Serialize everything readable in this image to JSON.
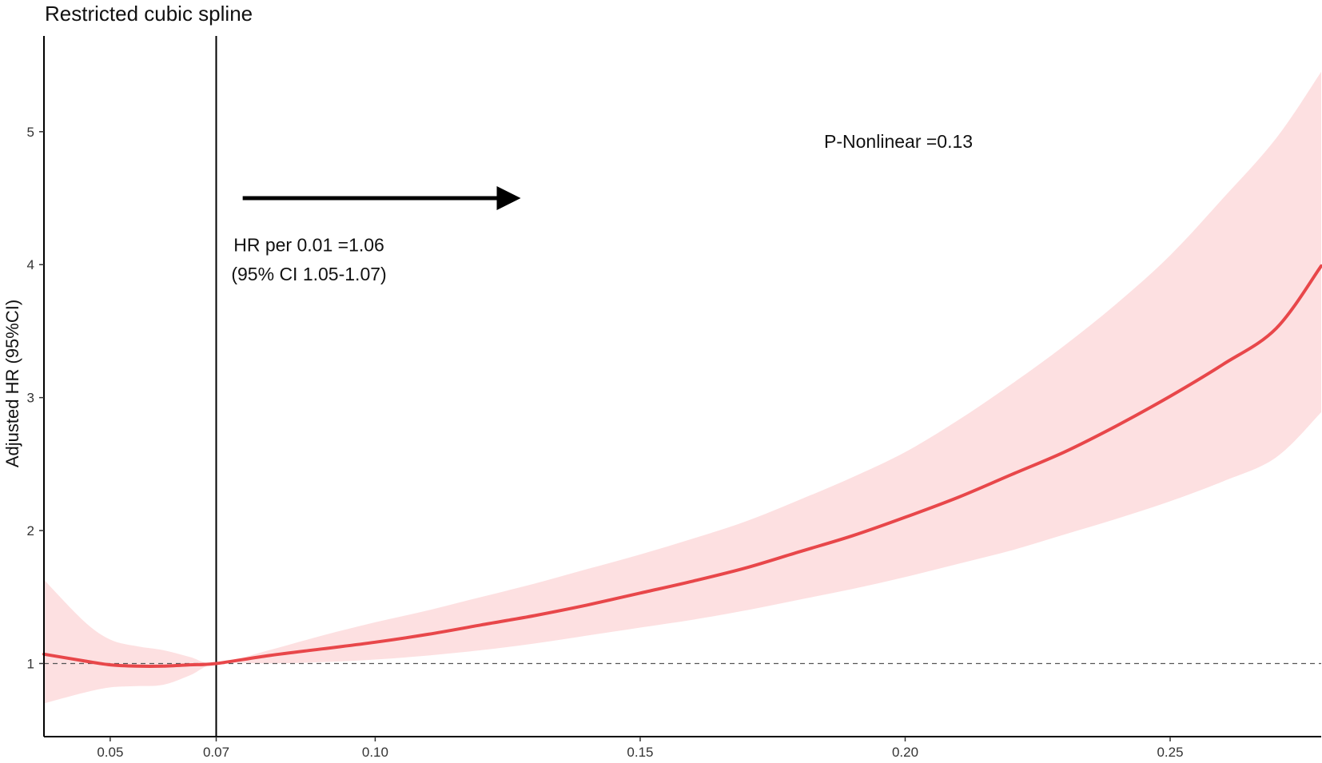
{
  "chart_data": {
    "type": "line",
    "title": "Restricted cubic spline",
    "xlabel": "",
    "ylabel": "Adjusted HR (95%CI)",
    "xlim": [
      0.0375,
      0.2785
    ],
    "ylim": [
      0.45,
      5.72
    ],
    "x_ticks": [
      "0.05",
      "0.07",
      "0.10",
      "0.15",
      "0.20",
      "0.25"
    ],
    "y_ticks": [
      "1",
      "2",
      "3",
      "4",
      "5"
    ],
    "reference_line": {
      "y": 1,
      "style": "dashed"
    },
    "vertical_line": {
      "x": 0.07
    },
    "grid": false,
    "series": [
      {
        "color": "#e8474a",
        "band_color": "#fde0e1",
        "x": [
          0.0375,
          0.045,
          0.05,
          0.055,
          0.06,
          0.065,
          0.07,
          0.08,
          0.09,
          0.1,
          0.11,
          0.12,
          0.13,
          0.14,
          0.15,
          0.16,
          0.17,
          0.18,
          0.19,
          0.2,
          0.21,
          0.22,
          0.23,
          0.24,
          0.25,
          0.26,
          0.27,
          0.2785
        ],
        "y": [
          1.07,
          1.02,
          0.99,
          0.98,
          0.98,
          0.99,
          1.0,
          1.06,
          1.11,
          1.16,
          1.22,
          1.29,
          1.36,
          1.44,
          1.53,
          1.62,
          1.72,
          1.84,
          1.96,
          2.1,
          2.25,
          2.42,
          2.59,
          2.79,
          3.01,
          3.25,
          3.52,
          3.99
        ],
        "lower": [
          0.7,
          0.78,
          0.82,
          0.83,
          0.84,
          0.91,
          1.0,
          1.0,
          1.01,
          1.03,
          1.06,
          1.1,
          1.15,
          1.21,
          1.27,
          1.33,
          1.4,
          1.48,
          1.56,
          1.65,
          1.75,
          1.85,
          1.97,
          2.09,
          2.22,
          2.37,
          2.55,
          2.89
        ],
        "upper": [
          1.63,
          1.32,
          1.18,
          1.13,
          1.1,
          1.05,
          1.0,
          1.1,
          1.21,
          1.31,
          1.4,
          1.5,
          1.6,
          1.71,
          1.82,
          1.94,
          2.07,
          2.23,
          2.4,
          2.59,
          2.83,
          3.1,
          3.39,
          3.71,
          4.07,
          4.5,
          4.95,
          5.45
        ]
      }
    ],
    "annotations": {
      "arrow": {
        "x_start": 0.075,
        "x_end": 0.1255,
        "y": 4.5
      },
      "hr_line1": "HR per 0.01 =1.06",
      "hr_line2": "(95% CI 1.05-1.07)",
      "p_nonlinear": "P-Nonlinear =0.13"
    }
  }
}
